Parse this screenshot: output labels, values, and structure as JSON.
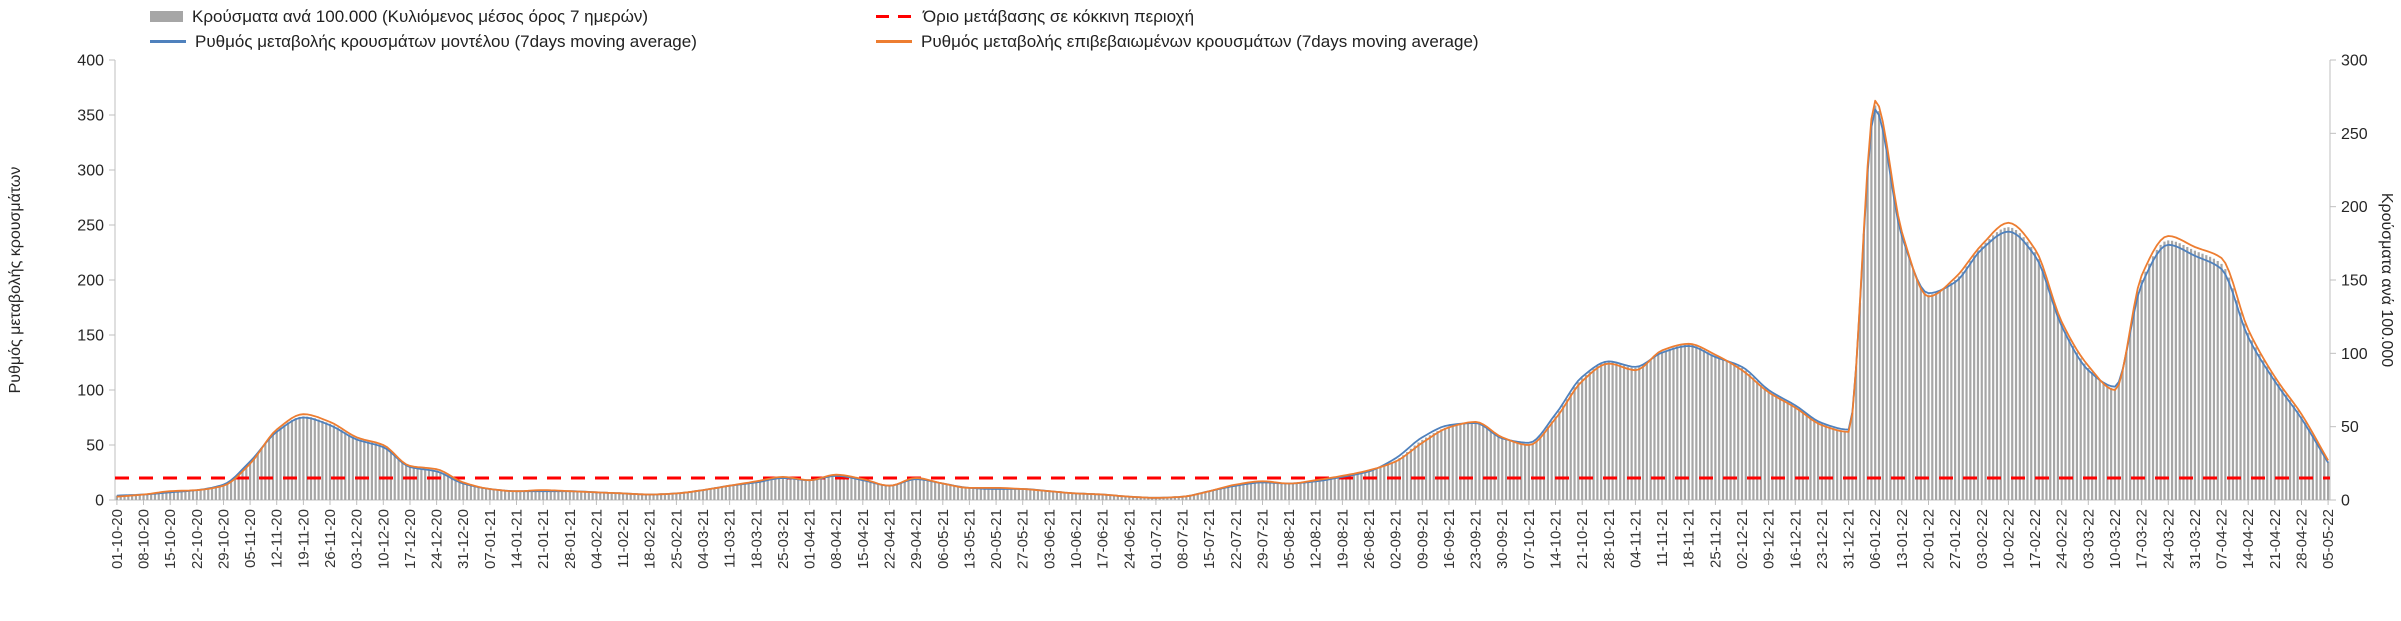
{
  "legend": {
    "cases": "Κρούσματα ανά 100.000 (Κυλιόμενος μέσος όρος 7 ημερών)",
    "threshold": "Όριο μετάβασης σε κόκκινη περιοχή",
    "model": "Ρυθμός μεταβολής κρουσμάτων μοντέλου (7days moving average)",
    "confirmed": "Ρυθμός μεταβολής επιβεβαιωμένων κρουσμάτων (7days moving average)"
  },
  "colors": {
    "bars": "#a6a6a6",
    "model_line": "#4f81bd",
    "confirmed_line": "#ed7d31",
    "threshold_line": "#ff0000",
    "axis": "#bfbfbf",
    "tick_text": "#262626"
  },
  "chart_data": {
    "type": "combo",
    "legend_position": "top",
    "grid": false,
    "x_label_interval_days": 7,
    "x_labels": [
      "01-10-20",
      "08-10-20",
      "15-10-20",
      "22-10-20",
      "29-10-20",
      "05-11-20",
      "12-11-20",
      "19-11-20",
      "26-11-20",
      "03-12-20",
      "10-12-20",
      "17-12-20",
      "24-12-20",
      "31-12-20",
      "07-01-21",
      "14-01-21",
      "21-01-21",
      "28-01-21",
      "04-02-21",
      "11-02-21",
      "18-02-21",
      "25-02-21",
      "04-03-21",
      "11-03-21",
      "18-03-21",
      "25-03-21",
      "01-04-21",
      "08-04-21",
      "15-04-21",
      "22-04-21",
      "29-04-21",
      "06-05-21",
      "13-05-21",
      "20-05-21",
      "27-05-21",
      "03-06-21",
      "10-06-21",
      "17-06-21",
      "24-06-21",
      "01-07-21",
      "08-07-21",
      "15-07-21",
      "22-07-21",
      "29-07-21",
      "05-08-21",
      "12-08-21",
      "19-08-21",
      "26-08-21",
      "02-09-21",
      "09-09-21",
      "16-09-21",
      "23-09-21",
      "30-09-21",
      "07-10-21",
      "14-10-21",
      "21-10-21",
      "28-10-21",
      "04-11-21",
      "11-11-21",
      "18-11-21",
      "25-11-21",
      "02-12-21",
      "09-12-21",
      "16-12-21",
      "23-12-21",
      "31-12-21",
      "06-01-22",
      "13-01-22",
      "20-01-22",
      "27-01-22",
      "03-02-22",
      "10-02-22",
      "17-02-22",
      "24-02-22",
      "03-03-22",
      "10-03-22",
      "17-03-22",
      "24-03-22",
      "31-03-22",
      "07-04-22",
      "14-04-22",
      "21-04-22",
      "28-04-22",
      "05-05-22"
    ],
    "left_axis": {
      "label": "Ρυθμός μεταβολής κρουσμάτων",
      "min": 0,
      "max": 400,
      "ticks": [
        0,
        50,
        100,
        150,
        200,
        250,
        300,
        350,
        400
      ]
    },
    "right_axis": {
      "label": "Κρούσματα ανά 100.000",
      "min": 0,
      "max": 300,
      "ticks": [
        0,
        50,
        100,
        150,
        200,
        250,
        300
      ]
    },
    "threshold": {
      "name": "Όριο μετάβασης σε κόκκινη περιοχή",
      "axis": "right",
      "value": 15,
      "color": "#ff0000",
      "style": "dashed"
    },
    "series": [
      {
        "name": "Κρούσματα ανά 100.000 (Κυλιόμενος μέσος όρος 7 ημερών)",
        "type": "bar",
        "axis": "right",
        "color": "#a6a6a6",
        "values": [
          3,
          4,
          6,
          7,
          10,
          26,
          47,
          57,
          52,
          42,
          37,
          23,
          20,
          12,
          8,
          6,
          6,
          6,
          5,
          5,
          4,
          5,
          7,
          10,
          12,
          15,
          14,
          17,
          14,
          10,
          15,
          11,
          8,
          8,
          8,
          6,
          5,
          4,
          2,
          2,
          2,
          6,
          10,
          12,
          11,
          13,
          16,
          20,
          27,
          41,
          50,
          53,
          42,
          38,
          57,
          83,
          94,
          90,
          101,
          106,
          98,
          90,
          74,
          64,
          52,
          47,
          269,
          182,
          140,
          150,
          173,
          186,
          169,
          120,
          90,
          76,
          150,
          177,
          170,
          161,
          114,
          83,
          57,
          26
        ]
      },
      {
        "name": "Ρυθμός μεταβολής κρουσμάτων μοντέλου (7days moving average)",
        "type": "line",
        "axis": "left",
        "color": "#4f81bd",
        "values": [
          4,
          5,
          7,
          9,
          14,
          35,
          62,
          75,
          68,
          55,
          48,
          30,
          26,
          15,
          10,
          8,
          8,
          8,
          7,
          6,
          5,
          6,
          9,
          13,
          16,
          20,
          18,
          22,
          18,
          13,
          19,
          15,
          11,
          10,
          10,
          8,
          6,
          5,
          3,
          2,
          3,
          8,
          13,
          16,
          15,
          17,
          21,
          26,
          38,
          57,
          68,
          70,
          56,
          52,
          78,
          112,
          126,
          121,
          134,
          140,
          130,
          121,
          100,
          86,
          70,
          64,
          355,
          240,
          188,
          198,
          228,
          244,
          222,
          158,
          118,
          103,
          196,
          232,
          222,
          210,
          148,
          108,
          74,
          34
        ]
      },
      {
        "name": "Ρυθμός μεταβολής επιβεβαιωμένων κρουσμάτων (7days moving average)",
        "type": "line",
        "axis": "left",
        "color": "#ed7d31",
        "values": [
          3,
          5,
          8,
          9,
          13,
          33,
          64,
          78,
          71,
          57,
          50,
          31,
          28,
          16,
          10,
          8,
          9,
          8,
          7,
          6,
          5,
          6,
          9,
          13,
          17,
          21,
          18,
          23,
          19,
          13,
          20,
          15,
          11,
          11,
          10,
          8,
          6,
          5,
          3,
          2,
          3,
          8,
          14,
          17,
          15,
          18,
          22,
          27,
          35,
          52,
          66,
          71,
          57,
          50,
          74,
          108,
          124,
          118,
          136,
          142,
          132,
          118,
          98,
          84,
          68,
          62,
          363,
          244,
          185,
          202,
          232,
          252,
          228,
          162,
          122,
          100,
          204,
          240,
          230,
          220,
          155,
          112,
          78,
          36
        ]
      }
    ]
  }
}
